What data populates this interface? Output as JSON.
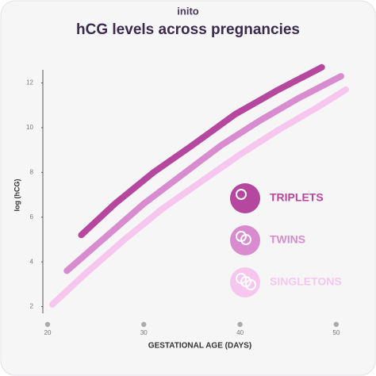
{
  "brand": "inito",
  "chart_data": {
    "type": "line",
    "title": "hCG levels across pregnancies",
    "x_label": "GESTATIONAL AGE (DAYS)",
    "y_label": "log (hCG)",
    "xlim": [
      20,
      51
    ],
    "xticks": [
      20,
      30,
      40,
      50
    ],
    "ylim": [
      1.7,
      12.8
    ],
    "yticks": [
      2,
      4,
      6,
      8,
      10,
      12
    ],
    "series": [
      {
        "name": "TRIPLETS",
        "color": "#b5479f",
        "x": [
          23.5,
          27,
          31,
          35,
          39.5,
          44,
          48.5
        ],
        "values": [
          5.2,
          6.6,
          8.0,
          9.2,
          10.6,
          11.7,
          12.7
        ]
      },
      {
        "name": "TWINS",
        "color": "#d98bcf",
        "x": [
          22,
          26,
          30,
          34,
          38,
          42,
          46,
          50.5
        ],
        "values": [
          3.6,
          5.1,
          6.6,
          7.9,
          9.2,
          10.3,
          11.3,
          12.3
        ]
      },
      {
        "name": "SINGLETONS",
        "color": "#f6c6ee",
        "x": [
          20.5,
          24,
          28,
          32,
          36,
          40,
          44,
          48,
          51
        ],
        "values": [
          2.1,
          3.5,
          5.0,
          6.4,
          7.6,
          8.8,
          9.9,
          10.9,
          11.7
        ]
      }
    ]
  }
}
